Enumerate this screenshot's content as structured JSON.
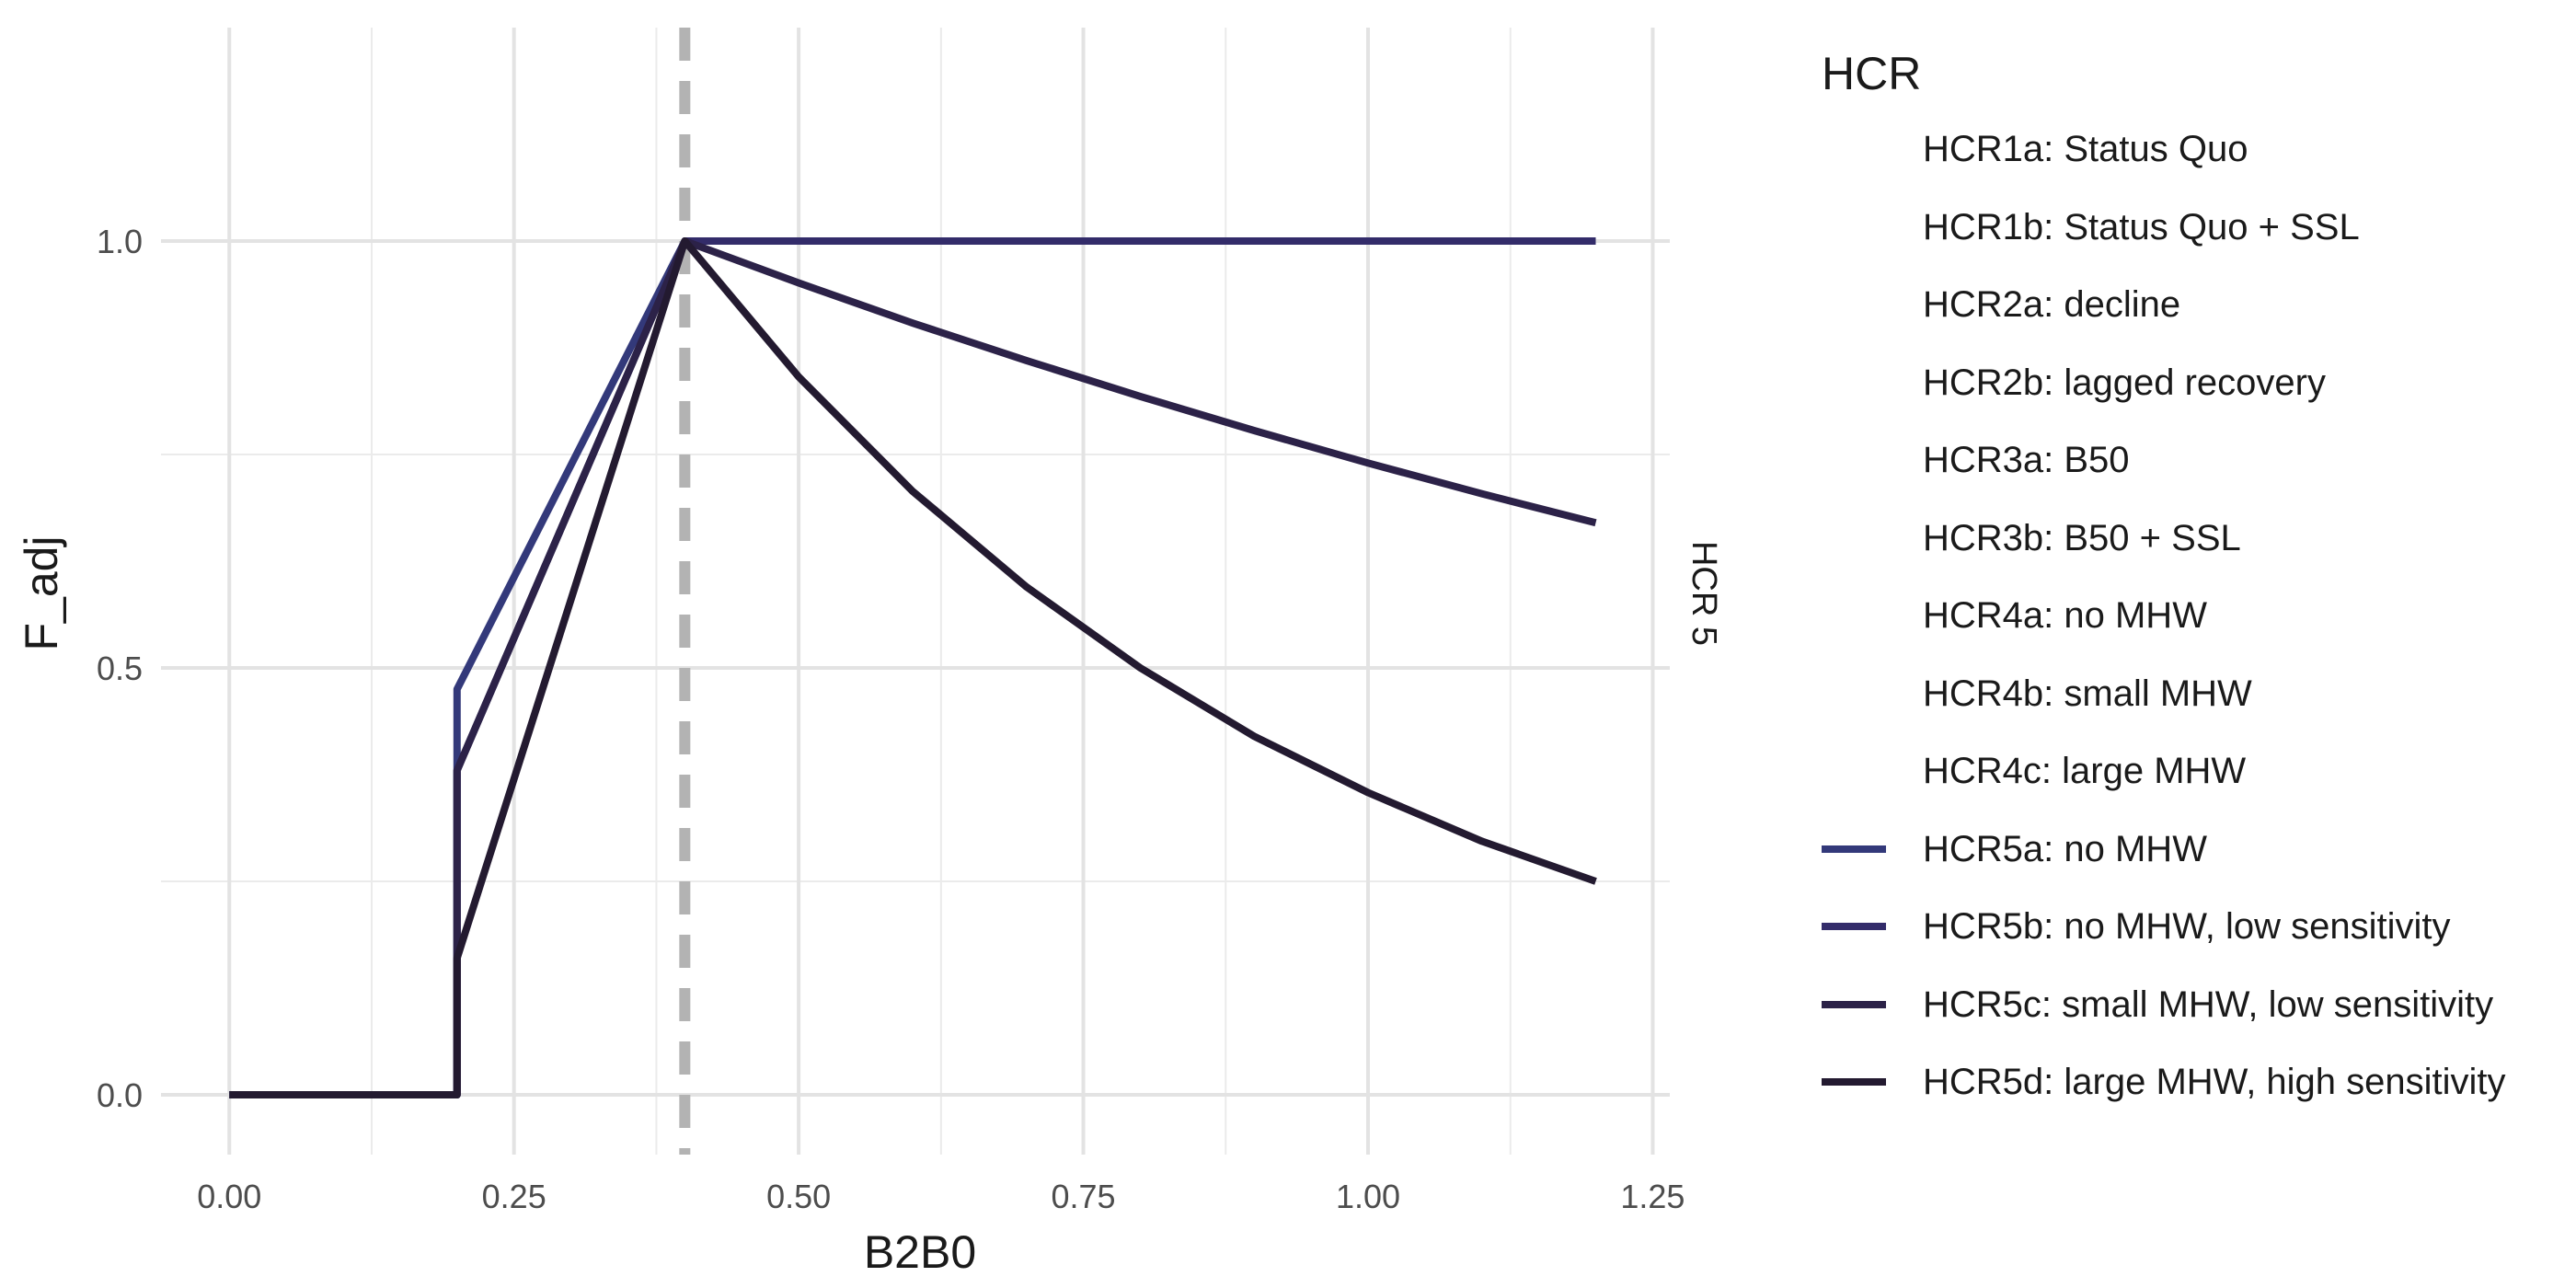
{
  "chart_data": {
    "type": "line",
    "xlabel": "B2B0",
    "ylabel": "F_adj",
    "facet_label": "HCR 5",
    "xlim": [
      -0.06,
      1.265
    ],
    "ylim": [
      -0.07,
      1.25
    ],
    "x_ticks": [
      0.0,
      0.25,
      0.5,
      0.75,
      1.0,
      1.25
    ],
    "x_tick_labels": [
      "0.00",
      "0.25",
      "0.50",
      "0.75",
      "1.00",
      "1.25"
    ],
    "y_ticks": [
      0.0,
      0.5,
      1.0
    ],
    "y_tick_labels": [
      "0.0",
      "0.5",
      "1.0"
    ],
    "grid": true,
    "reference_line": {
      "axis": "x",
      "value": 0.4,
      "style": "dashed",
      "color": "#b3b3b3"
    },
    "legend_title": "HCR",
    "legend_position": "right",
    "legend_entries": [
      {
        "label": "HCR1a: Status Quo",
        "color": null
      },
      {
        "label": "HCR1b: Status Quo + SSL",
        "color": null
      },
      {
        "label": "HCR2a: decline",
        "color": null
      },
      {
        "label": "HCR2b: lagged recovery",
        "color": null
      },
      {
        "label": "HCR3a: B50",
        "color": null
      },
      {
        "label": "HCR3b: B50 + SSL",
        "color": null
      },
      {
        "label": "HCR4a: no MHW",
        "color": null
      },
      {
        "label": "HCR4b: small MHW",
        "color": null
      },
      {
        "label": "HCR4c: large MHW",
        "color": null
      },
      {
        "label": "HCR5a: no MHW",
        "color": "#33397a"
      },
      {
        "label": "HCR5b: no MHW, low sensitivity",
        "color": "#332c6a"
      },
      {
        "label": "HCR5c: small MHW, low sensitivity",
        "color": "#2c2248"
      },
      {
        "label": "HCR5d: large MHW, high sensitivity",
        "color": "#231a30"
      }
    ],
    "series": [
      {
        "name": "HCR5a: no MHW",
        "color": "#33397a",
        "x": [
          0.0,
          0.2,
          0.2,
          0.4,
          1.2
        ],
        "y": [
          0.0,
          0.0,
          0.475,
          1.0,
          1.0
        ]
      },
      {
        "name": "HCR5b: no MHW, low sensitivity",
        "color": "#332c6a",
        "x": [
          0.0,
          0.2,
          0.2,
          0.4,
          1.2
        ],
        "y": [
          0.0,
          0.0,
          0.38,
          1.0,
          1.0
        ]
      },
      {
        "name": "HCR5c: small MHW, low sensitivity",
        "color": "#2c2248",
        "x": [
          0.0,
          0.2,
          0.2,
          0.4,
          0.5,
          0.6,
          0.7,
          0.8,
          0.9,
          1.0,
          1.1,
          1.2
        ],
        "y": [
          0.0,
          0.0,
          0.38,
          1.0,
          0.951,
          0.904,
          0.86,
          0.818,
          0.778,
          0.74,
          0.704,
          0.67
        ]
      },
      {
        "name": "HCR5d: large MHW, high sensitivity",
        "color": "#231a30",
        "x": [
          0.0,
          0.2,
          0.2,
          0.4,
          0.5,
          0.6,
          0.7,
          0.8,
          0.9,
          1.0,
          1.1,
          1.2
        ],
        "y": [
          0.0,
          0.0,
          0.16,
          1.0,
          0.841,
          0.707,
          0.595,
          0.5,
          0.42,
          0.354,
          0.297,
          0.25
        ]
      }
    ]
  }
}
